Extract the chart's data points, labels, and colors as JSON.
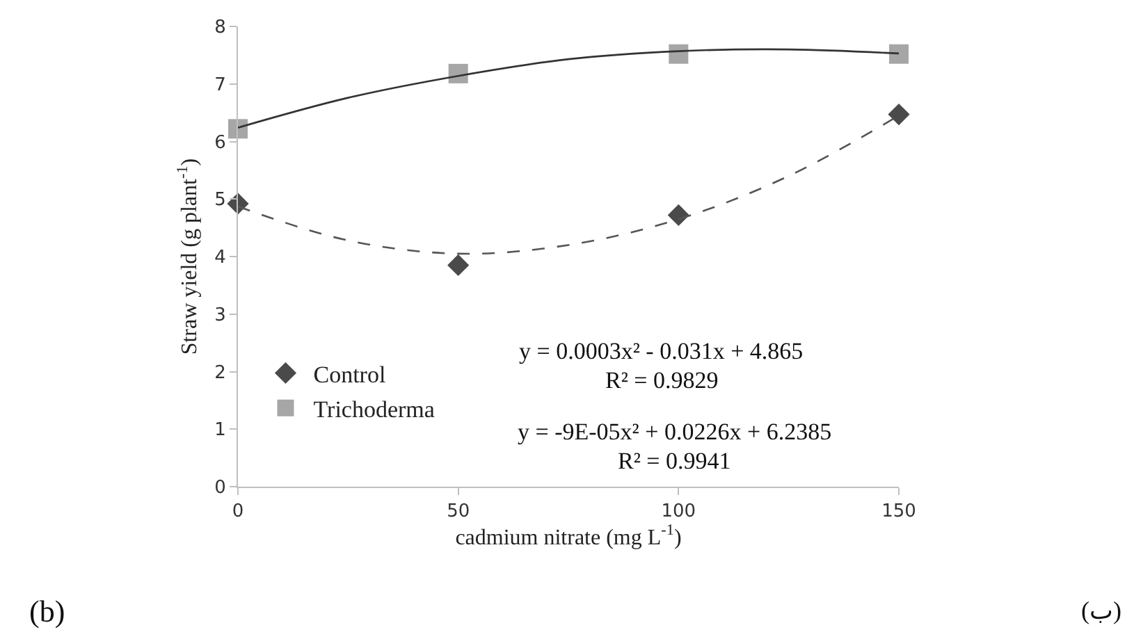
{
  "chart_data": {
    "type": "scatter",
    "xlabel": "cadmium nitrate (mg L$^{-1}$)",
    "ylabel": "Straw yield (g plant$^{-1}$)",
    "x": [
      0,
      50,
      100,
      150
    ],
    "series": [
      {
        "name": "Control",
        "color": "#4a4a4a",
        "marker": "diamond",
        "values": [
          4.92,
          3.85,
          4.72,
          6.47
        ]
      },
      {
        "name": "Trichoderma",
        "color": "#a6a6a6",
        "marker": "square",
        "values": [
          6.22,
          7.18,
          7.52,
          7.52
        ]
      },
      {
        "type": "line",
        "color": "#555555",
        "line_style": "dashed",
        "x": [
          0,
          25,
          50,
          75,
          100,
          125,
          150
        ],
        "values": [
          4.87,
          4.28,
          4.05,
          4.2,
          4.65,
          5.4,
          6.45
        ]
      },
      {
        "type": "line",
        "color": "#333333",
        "line_style": "solid",
        "x": [
          0,
          25,
          50,
          75,
          100,
          125,
          150
        ],
        "values": [
          6.24,
          6.76,
          7.14,
          7.43,
          7.57,
          7.6,
          7.53
        ]
      }
    ],
    "xlim": [
      0,
      150
    ],
    "xticks": [
      0,
      50,
      100,
      150
    ],
    "ylim": [
      0,
      8
    ],
    "yticks": [
      0,
      1,
      2,
      3,
      4,
      5,
      6,
      7,
      8
    ],
    "legend": "bottom left",
    "annotations": [
      "y = 0.0003x² - 0.031x + 4.865",
      "R² = 0.9829",
      "y = -9E-05x² + 0.0226x + 6.2385",
      "R² = 0.9941",
      "(b)",
      "(ب)"
    ]
  }
}
